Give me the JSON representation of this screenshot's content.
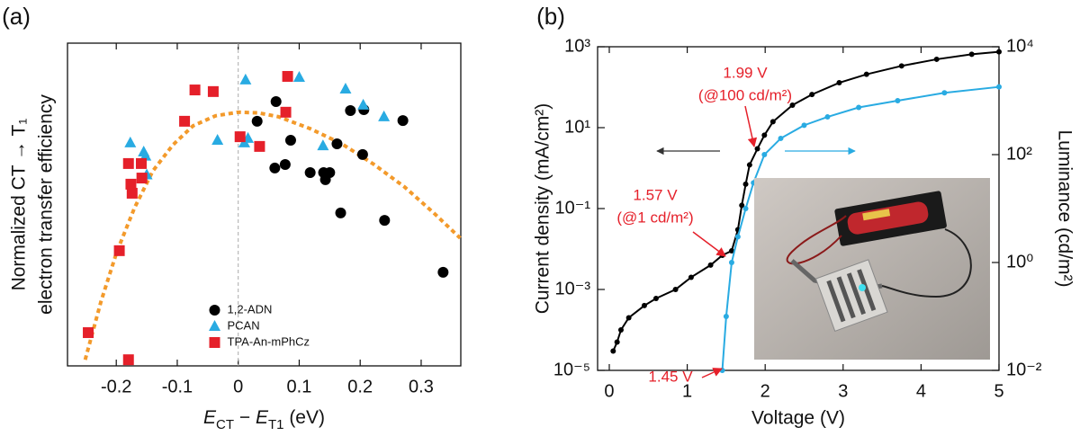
{
  "chart_data": [
    {
      "type": "scatter",
      "panel_label": "(a)",
      "ylabel": [
        "Normalized CT → T₁",
        "electron transfer efficiency"
      ],
      "xlabel": [
        {
          "text": "E",
          "style": "italic"
        },
        {
          "text": "CT",
          "style": "sub"
        },
        {
          "text": " − "
        },
        {
          "text": "E",
          "style": "italic"
        },
        {
          "text": "T1",
          "style": "sub"
        },
        {
          "text": " (eV)"
        }
      ],
      "xlim": [
        -0.28,
        0.365
      ],
      "xticks": [
        -0.2,
        -0.1,
        0,
        0.1,
        0.2,
        0.3
      ],
      "ylim": [
        0,
        1
      ],
      "vline": 0,
      "legend": "lower center",
      "series": [
        {
          "name": "1,2-ADN",
          "color": "#000000",
          "marker": "circle",
          "x": [
            0.062,
            0.086,
            0.06,
            0.077,
            0.118,
            0.14,
            0.143,
            0.15,
            0.162,
            0.168,
            0.184,
            0.206,
            0.204,
            0.27,
            0.24,
            0.336,
            0.031
          ],
          "values": [
            0.819,
            0.699,
            0.613,
            0.624,
            0.599,
            0.599,
            0.577,
            0.599,
            0.688,
            0.474,
            0.791,
            0.794,
            0.655,
            0.76,
            0.451,
            0.29,
            0.758
          ]
        },
        {
          "name": "PCAN",
          "color": "#29abe2",
          "marker": "triangle",
          "x": [
            0.012,
            -0.034,
            0.01,
            0.016,
            0.1,
            0.139,
            0.176,
            0.205,
            0.239,
            -0.177,
            -0.155,
            -0.152,
            -0.15
          ],
          "values": [
            0.886,
            0.699,
            0.691,
            0.705,
            0.894,
            0.682,
            0.858,
            0.808,
            0.772,
            0.691,
            0.663,
            0.65,
            0.592
          ]
        },
        {
          "name": "TPA-An-mPhCz",
          "color": "#e5202a",
          "marker": "square",
          "x": [
            -0.246,
            -0.18,
            -0.195,
            -0.176,
            -0.174,
            -0.18,
            -0.159,
            -0.158,
            -0.088,
            -0.071,
            -0.041,
            0.003,
            0.035,
            0.078,
            0.081
          ],
          "values": [
            0.103,
            0.019,
            0.357,
            0.563,
            0.535,
            0.627,
            0.627,
            0.582,
            0.758,
            0.855,
            0.85,
            0.71,
            0.68,
            0.786,
            0.897
          ]
        }
      ],
      "fit": {
        "color": "#f39a2b",
        "dashed": true,
        "x": [
          -0.251,
          -0.225,
          -0.199,
          -0.17,
          -0.14,
          -0.107,
          -0.074,
          -0.037,
          0,
          0.033,
          0.066,
          0.118,
          0.17,
          0.222,
          0.273,
          0.32,
          0.364
        ],
        "values": [
          0.019,
          0.2,
          0.354,
          0.49,
          0.604,
          0.685,
          0.744,
          0.775,
          0.786,
          0.784,
          0.772,
          0.735,
          0.688,
          0.625,
          0.554,
          0.475,
          0.396
        ]
      }
    },
    {
      "type": "line",
      "panel_label": "(b)",
      "xlabel": "Voltage (V)",
      "ylabel": "Current density (mA/cm²)",
      "y2label": "Luminance (cd/m²)",
      "xlim": [
        -0.15,
        5
      ],
      "xticks": [
        0,
        1,
        2,
        3,
        4,
        5
      ],
      "ylog": true,
      "ylim": [
        1e-05,
        1000
      ],
      "yticks": [
        {
          "value": 1e-05,
          "label": "10⁻⁵"
        },
        {
          "value": 0.001,
          "label": "10⁻³"
        },
        {
          "value": 0.1,
          "label": "10⁻¹"
        },
        {
          "value": 10,
          "label": "10¹"
        },
        {
          "value": 1000,
          "label": "10³"
        }
      ],
      "y2lim": [
        0.01,
        10000
      ],
      "y2ticks": [
        {
          "value": 0.01,
          "label": "10⁻²"
        },
        {
          "value": 1,
          "label": "10⁰"
        },
        {
          "value": 100,
          "label": "10²"
        },
        {
          "value": 10000,
          "label": "10⁴"
        }
      ],
      "series": [
        {
          "color": "#000000",
          "x": [
            0.05,
            0.1,
            0.15,
            0.25,
            0.45,
            0.6,
            0.85,
            1.05,
            1.3,
            1.45,
            1.57,
            1.65,
            1.7,
            1.75,
            1.8,
            1.9,
            1.99,
            2.1,
            2.35,
            2.6,
            2.95,
            3.3,
            3.75,
            4.2,
            4.65,
            5.0
          ],
          "values": [
            3e-05,
            5e-05,
            0.0001,
            0.0002,
            0.0004,
            0.0006,
            0.001,
            0.002,
            0.004,
            0.007,
            0.009,
            0.03,
            0.12,
            0.4,
            1.2,
            3,
            6.5,
            14,
            36,
            66,
            129,
            208,
            336,
            490,
            650,
            750
          ]
        },
        {
          "color": "#29abe2",
          "axis": "y2",
          "x": [
            1.45,
            1.5,
            1.57,
            1.65,
            1.75,
            1.85,
            1.99,
            2.2,
            2.5,
            2.8,
            3.2,
            3.7,
            4.3,
            5.0
          ],
          "values": [
            0.01,
            0.1,
            1,
            3,
            10,
            30,
            100,
            200,
            350,
            500,
            750,
            1000,
            1400,
            1800
          ]
        }
      ],
      "annotations": [
        {
          "lines": [
            "1.99 V",
            "(@100 cd/m²)"
          ],
          "color": "#e5202a"
        },
        {
          "lines": [
            "1.57 V",
            "(@1 cd/m²)"
          ],
          "color": "#e5202a"
        },
        {
          "lines": [
            "1.45 V"
          ],
          "color": "#e5202a"
        }
      ]
    }
  ]
}
